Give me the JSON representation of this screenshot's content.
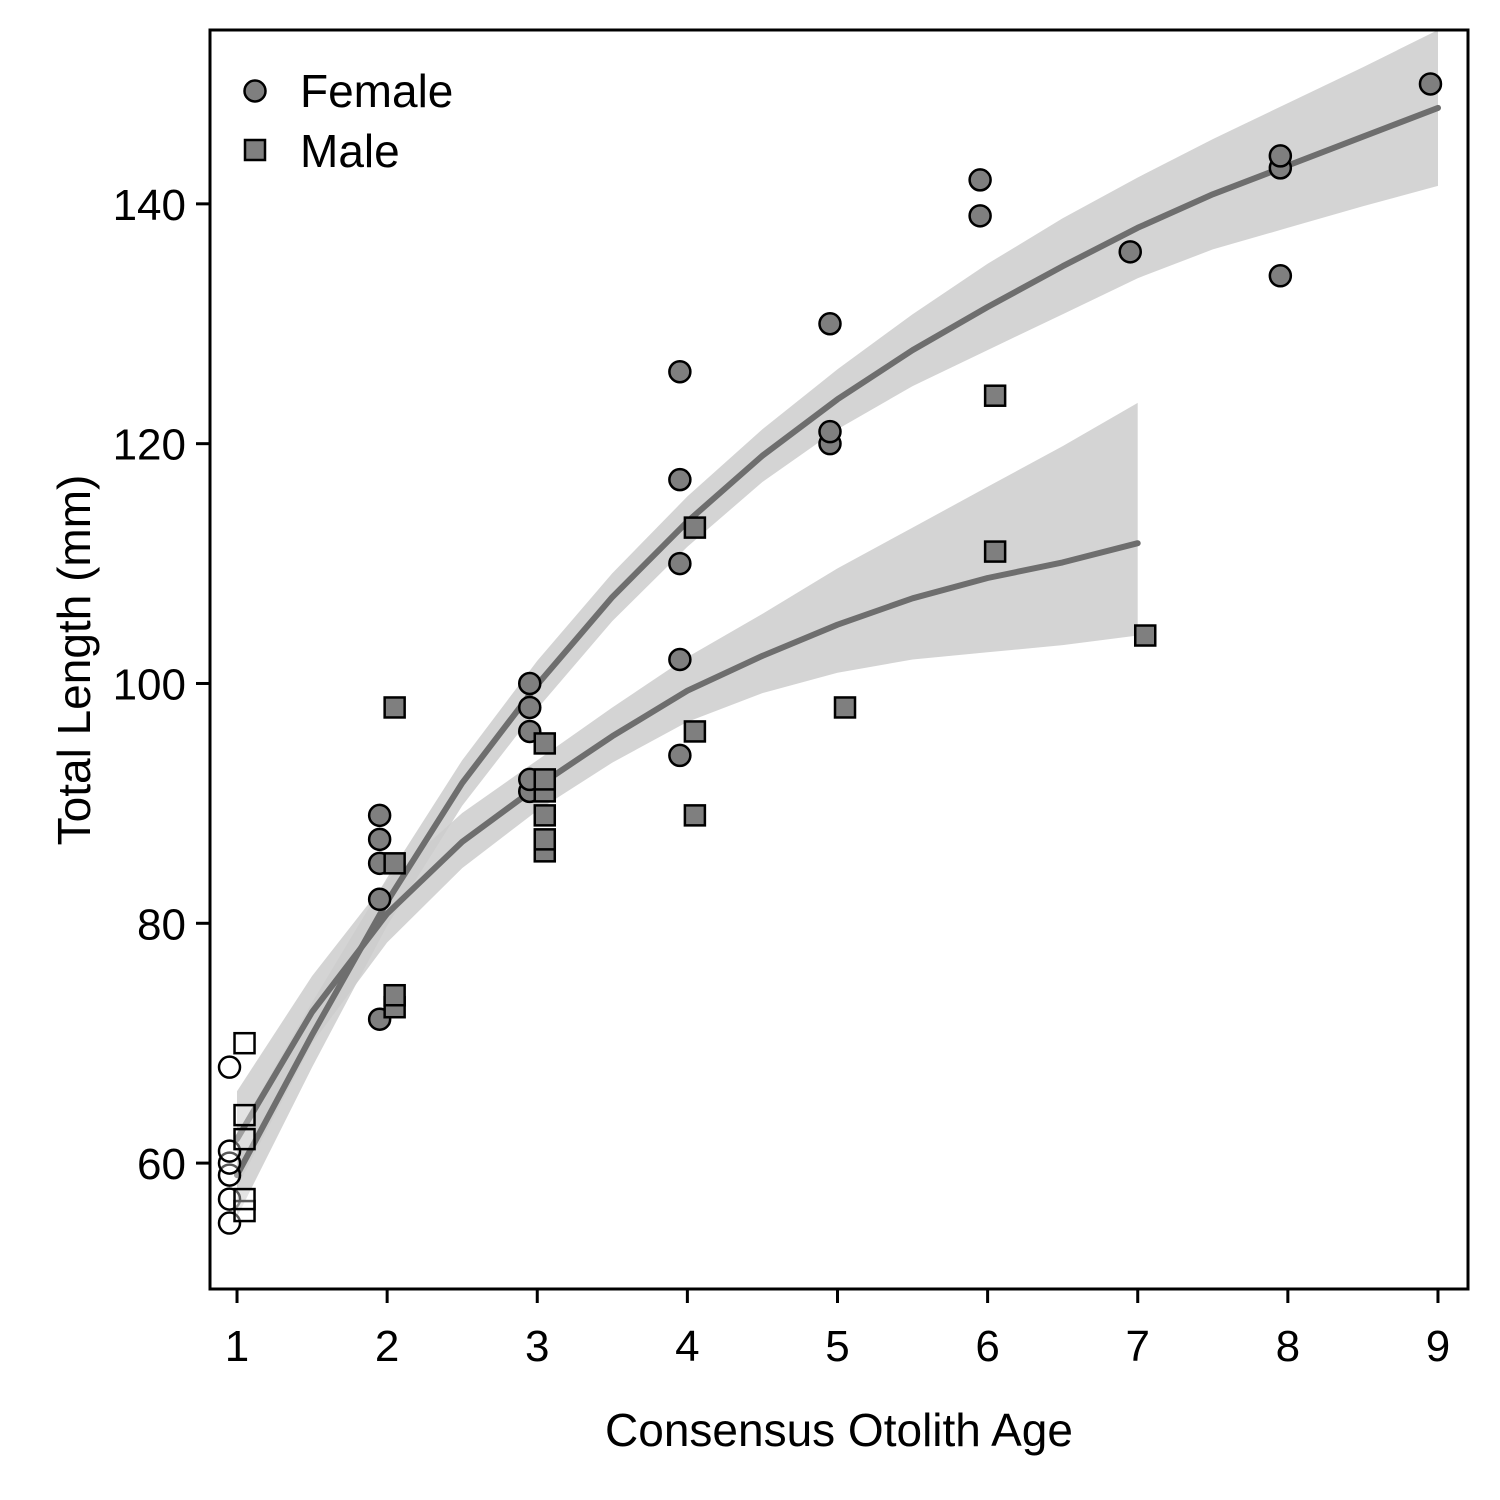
{
  "chart_data": {
    "type": "scatter",
    "title": "",
    "xlabel": "Consensus Otolith Age",
    "ylabel": "Total Length (mm)",
    "xlim": [
      0.82,
      9.2
    ],
    "ylim": [
      49.5,
      154.5
    ],
    "xticks": [
      1,
      2,
      3,
      4,
      5,
      6,
      7,
      8,
      9
    ],
    "yticks": [
      60,
      80,
      100,
      120,
      140
    ],
    "grid": false,
    "legend": "top-left",
    "colors": {
      "marker_fill": "#7f7f7f",
      "marker_edge": "#000000",
      "open_marker_fill": "#ffffff",
      "fit_line": "#6e6e6e",
      "ci_band": "#cccccc"
    },
    "series": [
      {
        "name": "Female",
        "marker": "circle",
        "points": [
          [
            0.95,
            55
          ],
          [
            0.95,
            57
          ],
          [
            0.95,
            59
          ],
          [
            0.95,
            60
          ],
          [
            0.95,
            61
          ],
          [
            0.95,
            68
          ],
          [
            1.95,
            72
          ],
          [
            1.95,
            82
          ],
          [
            1.95,
            85
          ],
          [
            1.95,
            87
          ],
          [
            1.95,
            89
          ],
          [
            2.95,
            91
          ],
          [
            2.95,
            92
          ],
          [
            2.95,
            96
          ],
          [
            2.95,
            98
          ],
          [
            2.95,
            100
          ],
          [
            3.95,
            94
          ],
          [
            3.95,
            102
          ],
          [
            3.95,
            110
          ],
          [
            3.95,
            117
          ],
          [
            3.95,
            126
          ],
          [
            4.95,
            120
          ],
          [
            4.95,
            121
          ],
          [
            4.95,
            130
          ],
          [
            5.95,
            139
          ],
          [
            5.95,
            142
          ],
          [
            6.95,
            136
          ],
          [
            7.95,
            134
          ],
          [
            7.95,
            143
          ],
          [
            7.95,
            144
          ],
          [
            8.95,
            150
          ]
        ],
        "open_ages": [
          1
        ],
        "fit": {
          "x": [
            1.0,
            1.5,
            2.0,
            2.5,
            3.0,
            3.5,
            4.0,
            4.5,
            5.0,
            5.5,
            6.0,
            6.5,
            7.0,
            7.5,
            8.0,
            8.5,
            9.0
          ],
          "y": [
            59.0,
            70.7,
            81.8,
            91.7,
            99.9,
            107.2,
            113.5,
            119.0,
            123.7,
            127.8,
            131.4,
            134.8,
            138.0,
            140.8,
            143.2,
            145.6,
            148.0
          ],
          "lower": [
            55.5,
            68.0,
            79.8,
            89.8,
            97.9,
            105.2,
            111.4,
            116.8,
            121.2,
            124.8,
            127.8,
            130.8,
            133.8,
            136.2,
            138.0,
            139.8,
            141.5
          ],
          "upper": [
            62.5,
            73.4,
            83.8,
            93.6,
            101.9,
            109.2,
            115.6,
            121.2,
            126.2,
            130.8,
            135.0,
            138.8,
            142.2,
            145.4,
            148.4,
            151.4,
            154.5
          ]
        }
      },
      {
        "name": "Male",
        "marker": "square",
        "points": [
          [
            1.05,
            56
          ],
          [
            1.05,
            57
          ],
          [
            1.05,
            62
          ],
          [
            1.05,
            64
          ],
          [
            1.05,
            70
          ],
          [
            2.05,
            73
          ],
          [
            2.05,
            74
          ],
          [
            2.05,
            85
          ],
          [
            2.05,
            98
          ],
          [
            3.05,
            86
          ],
          [
            3.05,
            87
          ],
          [
            3.05,
            89
          ],
          [
            3.05,
            91
          ],
          [
            3.05,
            92
          ],
          [
            3.05,
            95
          ],
          [
            4.05,
            89
          ],
          [
            4.05,
            96
          ],
          [
            4.05,
            113
          ],
          [
            5.05,
            98
          ],
          [
            6.05,
            111
          ],
          [
            6.05,
            124
          ],
          [
            7.05,
            104
          ]
        ],
        "open_ages": [
          1
        ],
        "fit": {
          "x": [
            1.0,
            1.5,
            2.0,
            2.5,
            3.0,
            3.5,
            4.0,
            4.5,
            5.0,
            5.5,
            6.0,
            6.5,
            7.0
          ],
          "y": [
            62.0,
            72.6,
            80.8,
            86.8,
            91.4,
            95.6,
            99.4,
            102.3,
            104.9,
            107.1,
            108.8,
            110.1,
            111.7
          ],
          "lower": [
            58.0,
            70.0,
            78.4,
            84.6,
            89.4,
            93.4,
            96.8,
            99.2,
            100.9,
            102.0,
            102.6,
            103.2,
            104.0
          ],
          "upper": [
            66.0,
            75.6,
            83.6,
            89.2,
            93.6,
            98.0,
            102.2,
            105.8,
            109.6,
            113.0,
            116.4,
            119.8,
            123.4
          ]
        }
      }
    ]
  }
}
